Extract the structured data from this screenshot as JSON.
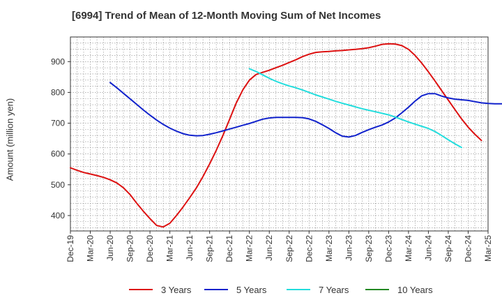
{
  "chart_data": {
    "type": "line",
    "title": "[6994]  Trend of Mean of 12-Month Moving Sum of Net Incomes",
    "xlabel": "",
    "ylabel": "Amount (million yen)",
    "ylim": [
      350,
      980
    ],
    "yticks": [
      400,
      500,
      600,
      700,
      800,
      900
    ],
    "x_ticks": [
      "Dec-19",
      "Mar-20",
      "Jun-20",
      "Sep-20",
      "Dec-20",
      "Mar-21",
      "Jun-21",
      "Sep-21",
      "Dec-21",
      "Mar-22",
      "Jun-22",
      "Sep-22",
      "Dec-22",
      "Mar-23",
      "Jun-23",
      "Sep-23",
      "Dec-23",
      "Mar-24",
      "Jun-24",
      "Sep-24",
      "Dec-24",
      "Mar-25"
    ],
    "grid": true,
    "legend_position": "bottom",
    "series": [
      {
        "name": "3 Years",
        "color": "#dd1111",
        "values": [
          [
            0,
            555
          ],
          [
            1,
            547
          ],
          [
            2,
            540
          ],
          [
            3,
            535
          ],
          [
            4,
            530
          ],
          [
            5,
            524
          ],
          [
            6,
            516
          ],
          [
            7,
            506
          ],
          [
            8,
            490
          ],
          [
            9,
            468
          ],
          [
            10,
            440
          ],
          [
            11,
            414
          ],
          [
            12,
            390
          ],
          [
            13,
            368
          ],
          [
            14,
            363
          ],
          [
            15,
            375
          ],
          [
            16,
            400
          ],
          [
            17,
            428
          ],
          [
            18,
            458
          ],
          [
            19,
            490
          ],
          [
            20,
            527
          ],
          [
            21,
            568
          ],
          [
            22,
            612
          ],
          [
            23,
            660
          ],
          [
            24,
            712
          ],
          [
            25,
            765
          ],
          [
            26,
            808
          ],
          [
            27,
            840
          ],
          [
            28,
            858
          ],
          [
            29,
            865
          ],
          [
            30,
            872
          ],
          [
            31,
            880
          ],
          [
            32,
            888
          ],
          [
            33,
            897
          ],
          [
            34,
            906
          ],
          [
            35,
            916
          ],
          [
            36,
            924
          ],
          [
            37,
            930
          ],
          [
            38,
            932
          ],
          [
            39,
            933
          ],
          [
            40,
            935
          ],
          [
            41,
            936
          ],
          [
            42,
            938
          ],
          [
            43,
            940
          ],
          [
            44,
            942
          ],
          [
            45,
            945
          ],
          [
            46,
            950
          ],
          [
            47,
            956
          ],
          [
            48,
            958
          ],
          [
            49,
            957
          ],
          [
            50,
            952
          ],
          [
            51,
            940
          ],
          [
            52,
            920
          ],
          [
            53,
            895
          ],
          [
            54,
            867
          ],
          [
            55,
            837
          ],
          [
            56,
            806
          ],
          [
            57,
            775
          ],
          [
            58,
            744
          ],
          [
            59,
            714
          ],
          [
            60,
            687
          ],
          [
            61,
            664
          ],
          [
            62,
            644
          ]
        ]
      },
      {
        "name": "5 Years",
        "color": "#1122cc",
        "values": [
          [
            6,
            832
          ],
          [
            7,
            815
          ],
          [
            8,
            797
          ],
          [
            9,
            779
          ],
          [
            10,
            761
          ],
          [
            11,
            743
          ],
          [
            12,
            726
          ],
          [
            13,
            710
          ],
          [
            14,
            696
          ],
          [
            15,
            684
          ],
          [
            16,
            674
          ],
          [
            17,
            666
          ],
          [
            18,
            661
          ],
          [
            19,
            659
          ],
          [
            20,
            660
          ],
          [
            21,
            664
          ],
          [
            22,
            669
          ],
          [
            23,
            675
          ],
          [
            24,
            681
          ],
          [
            25,
            687
          ],
          [
            26,
            693
          ],
          [
            27,
            699
          ],
          [
            28,
            706
          ],
          [
            29,
            713
          ],
          [
            30,
            717
          ],
          [
            31,
            719
          ],
          [
            32,
            719
          ],
          [
            33,
            719
          ],
          [
            34,
            719
          ],
          [
            35,
            718
          ],
          [
            36,
            714
          ],
          [
            37,
            706
          ],
          [
            38,
            695
          ],
          [
            39,
            683
          ],
          [
            40,
            669
          ],
          [
            41,
            658
          ],
          [
            42,
            655
          ],
          [
            43,
            660
          ],
          [
            44,
            670
          ],
          [
            45,
            679
          ],
          [
            46,
            687
          ],
          [
            47,
            694
          ],
          [
            48,
            704
          ],
          [
            49,
            717
          ],
          [
            50,
            734
          ],
          [
            51,
            752
          ],
          [
            52,
            772
          ],
          [
            53,
            789
          ],
          [
            54,
            796
          ],
          [
            55,
            796
          ],
          [
            56,
            788
          ],
          [
            57,
            782
          ],
          [
            58,
            778
          ],
          [
            59,
            776
          ],
          [
            60,
            774
          ],
          [
            61,
            770
          ],
          [
            62,
            766
          ],
          [
            63,
            764
          ],
          [
            64,
            763
          ],
          [
            65,
            763
          ],
          [
            66,
            764
          ]
        ]
      },
      {
        "name": "7 Years",
        "color": "#22dddd",
        "values": [
          [
            27,
            877
          ],
          [
            28,
            868
          ],
          [
            29,
            857
          ],
          [
            30,
            846
          ],
          [
            31,
            836
          ],
          [
            32,
            828
          ],
          [
            33,
            821
          ],
          [
            34,
            815
          ],
          [
            35,
            808
          ],
          [
            36,
            800
          ],
          [
            37,
            792
          ],
          [
            38,
            785
          ],
          [
            39,
            778
          ],
          [
            40,
            771
          ],
          [
            41,
            765
          ],
          [
            42,
            759
          ],
          [
            43,
            753
          ],
          [
            44,
            747
          ],
          [
            45,
            742
          ],
          [
            46,
            737
          ],
          [
            47,
            732
          ],
          [
            48,
            727
          ],
          [
            49,
            720
          ],
          [
            50,
            712
          ],
          [
            51,
            704
          ],
          [
            52,
            697
          ],
          [
            53,
            690
          ],
          [
            54,
            683
          ],
          [
            55,
            673
          ],
          [
            56,
            660
          ],
          [
            57,
            646
          ],
          [
            58,
            633
          ],
          [
            59,
            621
          ]
        ]
      },
      {
        "name": "10 Years",
        "color": "#228822",
        "values": []
      }
    ]
  }
}
